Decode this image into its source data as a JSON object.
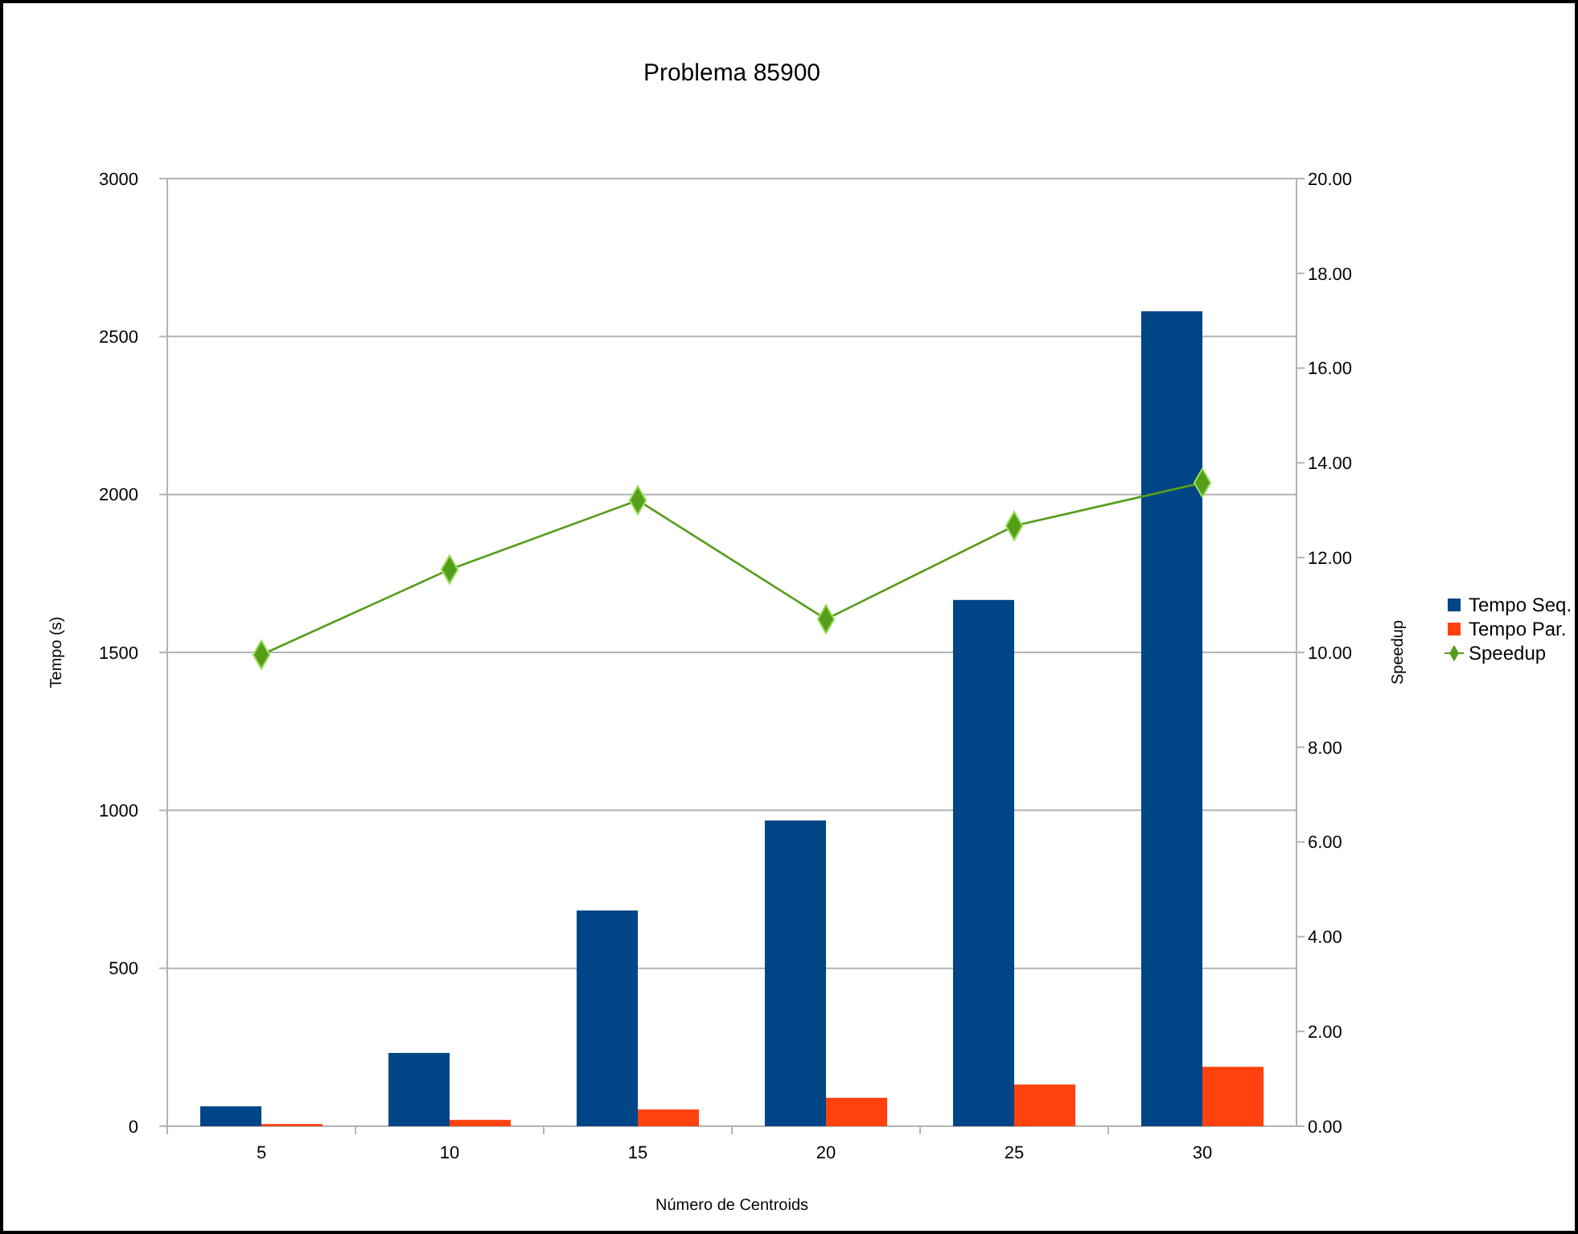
{
  "chart_data": {
    "type": "bar",
    "title": "Problema 85900",
    "xlabel": "Número de Centroids",
    "ylabel": "Tempo (s)",
    "y2label": "Speedup",
    "categories": [
      "5",
      "10",
      "15",
      "20",
      "25",
      "30"
    ],
    "series": [
      {
        "name": "Tempo Seq.",
        "color": "#004586",
        "values": [
          63,
          232,
          683,
          968,
          1666,
          2580
        ]
      },
      {
        "name": "Tempo Par.",
        "color": "#ff420e",
        "values": [
          7,
          20,
          53,
          90,
          132,
          188
        ]
      },
      {
        "name": "Speedup",
        "type": "line",
        "axis": "y2",
        "color": "#579d1c",
        "marker": "diamond",
        "values": [
          9.95,
          11.75,
          13.21,
          10.7,
          12.67,
          13.58
        ]
      }
    ],
    "ylim": [
      0,
      3000
    ],
    "yticks": [
      0,
      500,
      1000,
      1500,
      2000,
      2500,
      3000
    ],
    "y2lim": [
      0,
      20
    ],
    "y2ticks": [
      {
        "value": 0,
        "label": "0.00"
      },
      {
        "value": 2,
        "label": "2.00"
      },
      {
        "value": 4,
        "label": "4.00"
      },
      {
        "value": 6,
        "label": "6.00"
      },
      {
        "value": 8,
        "label": "8.00"
      },
      {
        "value": 10,
        "label": "10.00"
      },
      {
        "value": 12,
        "label": "12.00"
      },
      {
        "value": 14,
        "label": "14.00"
      },
      {
        "value": 16,
        "label": "16.00"
      },
      {
        "value": 18,
        "label": "18.00"
      },
      {
        "value": 20,
        "label": "20.00"
      }
    ],
    "grid": "y",
    "legend": "right"
  }
}
